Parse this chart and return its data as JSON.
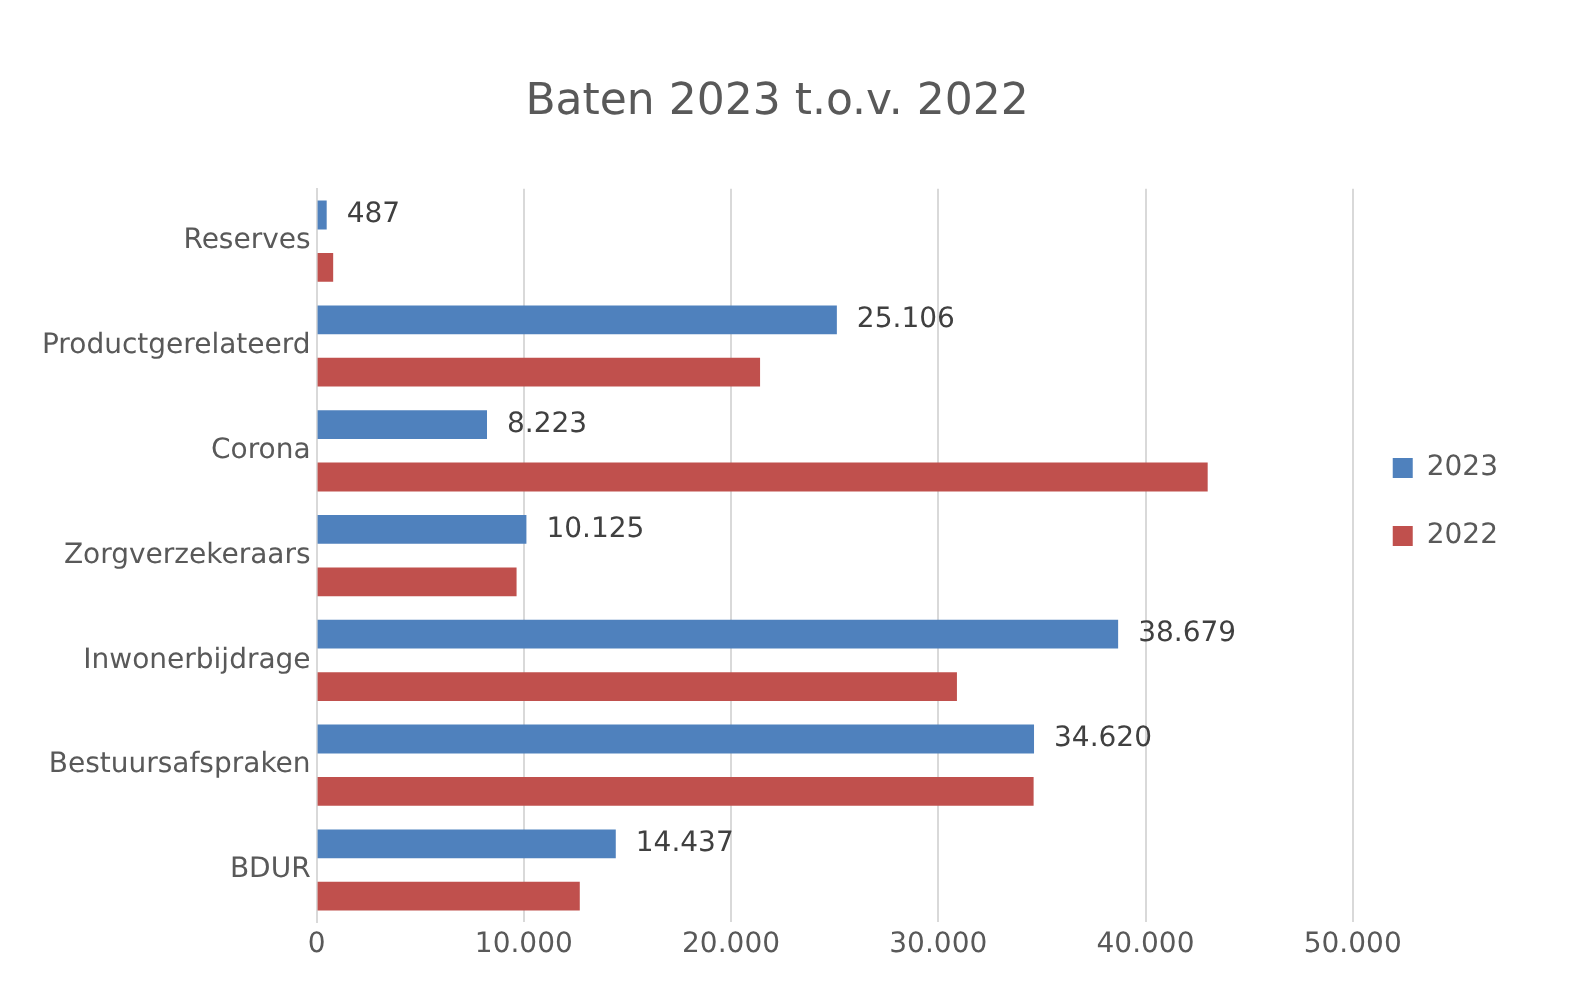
{
  "chart_data": {
    "type": "bar",
    "orientation": "horizontal",
    "title": "Baten 2023 t.o.v. 2022",
    "categories": [
      "Reserves",
      "Productgerelateerd",
      "Corona",
      "Zorgverzekeraars",
      "Inwonerbijdrage",
      "Bestuursafspraken",
      "BDUR"
    ],
    "series": [
      {
        "name": "2023",
        "color": "#4f81bd",
        "values": [
          487,
          25106,
          8223,
          10125,
          38679,
          34620,
          14437
        ],
        "value_labels": [
          "487",
          "25.106",
          "8.223",
          "10.125",
          "38.679",
          "34.620",
          "14.437"
        ]
      },
      {
        "name": "2022",
        "color": "#c0504d",
        "values": [
          800,
          21400,
          43000,
          9650,
          30900,
          34600,
          12700
        ]
      }
    ],
    "xlim": [
      0,
      50000
    ],
    "xticks": [
      0,
      {
        "value": 10000,
        "label": "10.000"
      },
      {
        "value": 20000,
        "label": "20.000"
      },
      {
        "value": 30000,
        "label": "30.000"
      },
      {
        "value": 40000,
        "label": "40.000"
      },
      {
        "value": 50000,
        "label": "50.000"
      }
    ],
    "grid": "x",
    "legend": "right"
  }
}
